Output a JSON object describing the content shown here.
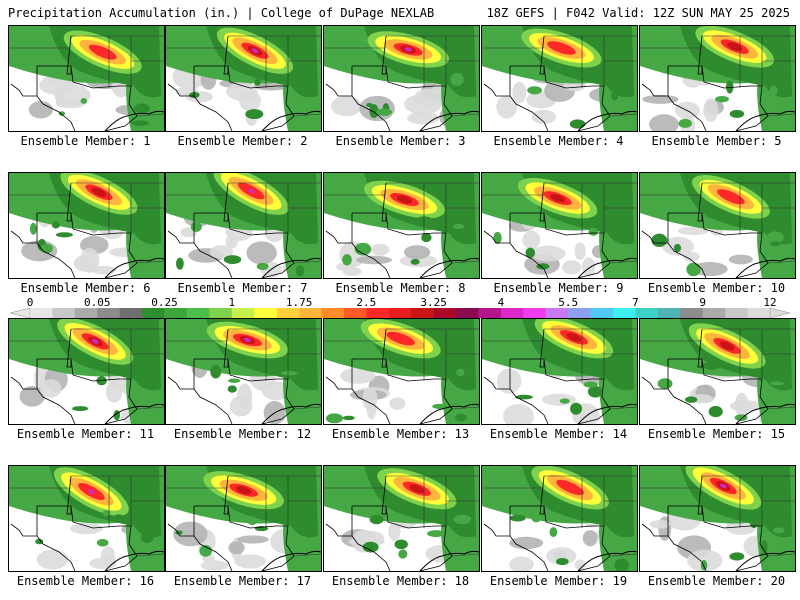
{
  "header": {
    "left": "Precipitation Accumulation (in.) | College of DuPage NEXLAB",
    "right": "18Z GEFS | F042 Valid: 12Z SUN MAY 25 2025"
  },
  "panels": [
    "Ensemble Member: 1",
    "Ensemble Member: 2",
    "Ensemble Member: 3",
    "Ensemble Member: 4",
    "Ensemble Member: 5",
    "Ensemble Member: 6",
    "Ensemble Member: 7",
    "Ensemble Member: 8",
    "Ensemble Member: 9",
    "Ensemble Member: 10",
    "Ensemble Member: 11",
    "Ensemble Member: 12",
    "Ensemble Member: 13",
    "Ensemble Member: 14",
    "Ensemble Member: 15",
    "Ensemble Member: 16",
    "Ensemble Member: 17",
    "Ensemble Member: 18",
    "Ensemble Member: 19",
    "Ensemble Member: 20"
  ],
  "legend": {
    "tick_labels": [
      "0",
      "0.05",
      "0.25",
      "1",
      "1.75",
      "2.5",
      "3.25",
      "4",
      "5.5",
      "7",
      "9",
      "12"
    ],
    "colors": [
      "#e6e6e6",
      "#c8c8c8",
      "#aaaaaa",
      "#8c8c8c",
      "#6e6e6e",
      "#2f8f2f",
      "#3ca53c",
      "#4bbe4b",
      "#7fd24c",
      "#c8f04c",
      "#ffff3c",
      "#ffd23c",
      "#ffb43c",
      "#ff8c28",
      "#ff5a28",
      "#ff2828",
      "#e61e1e",
      "#c81414",
      "#aa0a28",
      "#8c0a50",
      "#b4148c",
      "#dc28c8",
      "#f03cf0",
      "#c878f0",
      "#8ca0f0",
      "#50c8f0",
      "#3cf0f0",
      "#3cd2c8",
      "#50b4b4",
      "#8c8c8c",
      "#aaaaaa",
      "#c8c8c8",
      "#dcdcdc"
    ]
  },
  "palette": {
    "green_dark": "#2e8b2e",
    "green_mid": "#45a845",
    "green_light": "#7fd24c",
    "yellow": "#ffff3c",
    "orange": "#ffb43c",
    "red": "#ff2828",
    "darkred": "#c81414",
    "magenta": "#d028c8",
    "gray_light": "#dcdcdc",
    "gray_mid": "#b4b4b4",
    "gray_dark": "#8c8c8c"
  }
}
